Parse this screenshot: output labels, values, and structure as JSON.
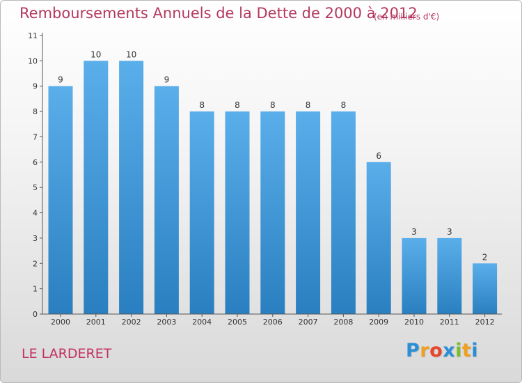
{
  "title": "Remboursements Annuels de la Dette de 2000 à 2012",
  "subtitle": "(en milliers d'€)",
  "commune": "LE LARDERET",
  "brand": {
    "letters": [
      "P",
      "r",
      "o",
      "x",
      "i",
      "t",
      "i"
    ],
    "colors": [
      "#2a8fd6",
      "#f0a020",
      "#e8452c",
      "#2a8fd6",
      "#7dbd2c",
      "#f0a020",
      "#2a8fd6"
    ]
  },
  "colors": {
    "bar_top": "#5aaeea",
    "bar_bottom": "#2a7fc0",
    "title": "#b5385f"
  },
  "chart_data": {
    "type": "bar",
    "categories": [
      "2000",
      "2001",
      "2002",
      "2003",
      "2004",
      "2005",
      "2006",
      "2007",
      "2008",
      "2009",
      "2010",
      "2011",
      "2012"
    ],
    "values": [
      9,
      10,
      10,
      9,
      8,
      8,
      8,
      8,
      8,
      6,
      3,
      3,
      2
    ],
    "data_labels": [
      "9",
      "10",
      "10",
      "9",
      "8",
      "8",
      "8",
      "8",
      "8",
      "6",
      "3",
      "3",
      "2"
    ],
    "yticks": [
      0,
      1,
      2,
      3,
      4,
      5,
      6,
      7,
      8,
      9,
      10,
      11
    ],
    "ylim": [
      0,
      11
    ],
    "grid": false,
    "legend": "none"
  }
}
